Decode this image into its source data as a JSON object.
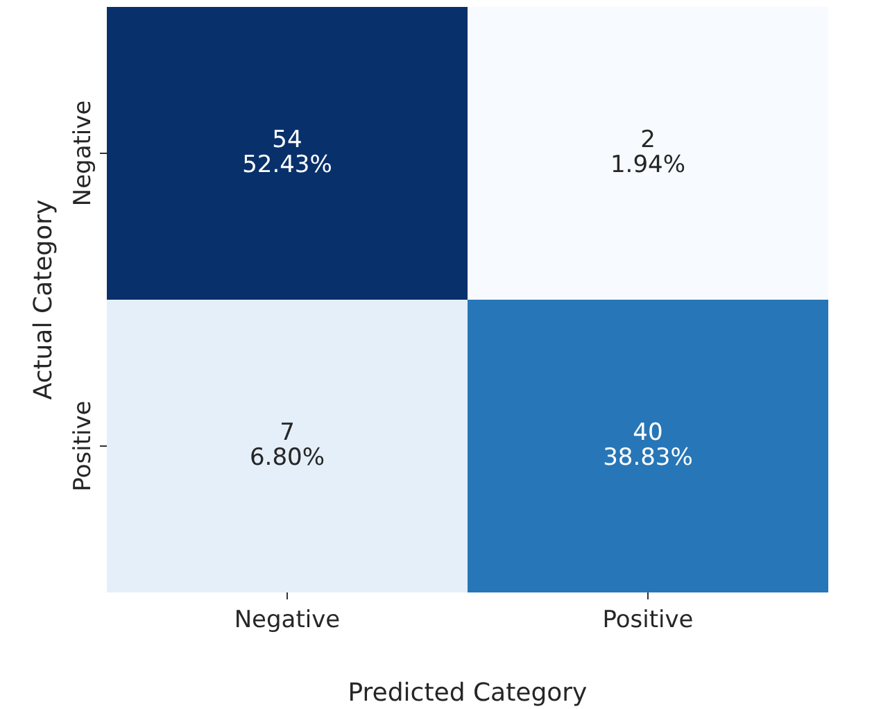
{
  "chart_data": {
    "type": "heatmap",
    "xlabel": "Predicted Category",
    "ylabel": "Actual Category",
    "categories": [
      "Negative",
      "Positive"
    ],
    "y_categories": [
      "Negative",
      "Positive"
    ],
    "cells": [
      [
        54,
        2
      ],
      [
        7,
        40
      ]
    ],
    "data_labels": true,
    "annotations": [
      "52.43%",
      "1.94%",
      "6.80%",
      "38.83%"
    ]
  }
}
